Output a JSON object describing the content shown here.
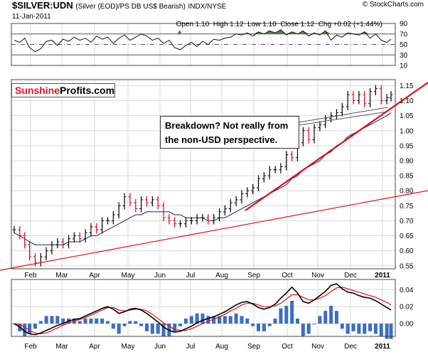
{
  "header": {
    "symbol": "$SILVER:UDN",
    "description": "(Silver (EOD)/PS DB US$ Bearish)",
    "exchange": "INDX/NYSE",
    "date": "11-Jan-2011",
    "quote": "Open 1.10  High 1.12  Low 1.10  Close 1.12  Chg +0.02 (+1.44%)",
    "quote_arrow": "▲",
    "copyright": "© StockCharts.com"
  },
  "logo": {
    "part1": "Sunshine",
    "part2": "Profits.com",
    "color1": "#e0141e",
    "color2": "#000000"
  },
  "annotation": {
    "line1": "Breakdown? Not really from",
    "line2": "the non-USD perspective."
  },
  "colors": {
    "price_up": "#000000",
    "price_down": "#d4001a",
    "ma": "#1a237e",
    "trendline": "#e01010",
    "rsi_fill": "#5a7d4a",
    "macd_hist": "#3a6fc0",
    "macd_signal": "#e01010"
  },
  "chart_data": [
    {
      "type": "line",
      "name": "RSI",
      "yticks": [
        "90",
        "70",
        "50",
        "30",
        "10"
      ],
      "ylim": [
        10,
        90
      ],
      "x": [
        0,
        8,
        15,
        22,
        30,
        38,
        46,
        54,
        62,
        70,
        78,
        86,
        94,
        102,
        110,
        118,
        126,
        134,
        142,
        150,
        158,
        166,
        174,
        182,
        190,
        198,
        206,
        214,
        222,
        230,
        238,
        246,
        254,
        262,
        270,
        278,
        286,
        294,
        302,
        310,
        318,
        326,
        334,
        342,
        350,
        358,
        366,
        374,
        382,
        390,
        398,
        406,
        414,
        422,
        430,
        438,
        446,
        454,
        462,
        470,
        478,
        486,
        494,
        502,
        510,
        518,
        526,
        534,
        540
      ],
      "values": [
        58,
        54,
        62,
        44,
        36,
        42,
        56,
        58,
        48,
        60,
        56,
        64,
        58,
        62,
        54,
        66,
        60,
        64,
        52,
        62,
        68,
        58,
        64,
        70,
        66,
        58,
        62,
        52,
        58,
        44,
        40,
        48,
        54,
        46,
        56,
        50,
        60,
        58,
        62,
        64,
        70,
        68,
        72,
        66,
        74,
        70,
        76,
        72,
        78,
        68,
        74,
        70,
        76,
        66,
        72,
        68,
        76,
        58,
        68,
        64,
        72,
        70,
        68,
        74,
        62,
        70,
        58,
        54,
        60
      ],
      "overbought": 70,
      "oversold": 30
    },
    {
      "type": "line",
      "name": "Price",
      "title": "$SILVER:UDN",
      "yticks": [
        "1.15",
        "1.10",
        "1.05",
        "1.00",
        "0.95",
        "0.90",
        "0.85",
        "0.80",
        "0.75",
        "0.70",
        "0.65",
        "0.60",
        "0.55"
      ],
      "ylim": [
        0.54,
        1.17
      ],
      "months": [
        "Feb",
        "Mar",
        "Apr",
        "May",
        "Jun",
        "Jul",
        "Aug",
        "Sep",
        "Oct",
        "Nov",
        "Dec",
        "2011"
      ],
      "x": [
        0,
        8,
        15,
        22,
        30,
        38,
        46,
        54,
        62,
        70,
        78,
        86,
        94,
        102,
        110,
        118,
        126,
        134,
        142,
        150,
        158,
        166,
        174,
        182,
        190,
        198,
        206,
        214,
        222,
        230,
        238,
        246,
        254,
        262,
        270,
        278,
        286,
        294,
        302,
        310,
        318,
        326,
        334,
        342,
        350,
        358,
        366,
        374,
        382,
        390,
        398,
        406,
        414,
        422,
        430,
        438,
        446,
        454,
        462,
        470,
        478,
        486,
        494,
        502,
        510,
        518,
        526,
        534,
        540
      ],
      "close": [
        0.67,
        0.65,
        0.62,
        0.58,
        0.56,
        0.58,
        0.6,
        0.62,
        0.63,
        0.62,
        0.64,
        0.65,
        0.64,
        0.66,
        0.68,
        0.67,
        0.7,
        0.7,
        0.72,
        0.75,
        0.78,
        0.76,
        0.74,
        0.77,
        0.76,
        0.77,
        0.75,
        0.71,
        0.7,
        0.69,
        0.69,
        0.7,
        0.7,
        0.71,
        0.71,
        0.7,
        0.71,
        0.73,
        0.74,
        0.76,
        0.77,
        0.79,
        0.8,
        0.81,
        0.84,
        0.85,
        0.87,
        0.87,
        0.88,
        0.92,
        0.91,
        0.96,
        1.0,
        0.97,
        1.01,
        1.02,
        1.04,
        1.05,
        1.06,
        1.08,
        1.12,
        1.1,
        1.12,
        1.09,
        1.13,
        1.14,
        1.1,
        1.11,
        1.12
      ],
      "moving_average": [
        0.66,
        0.65,
        0.64,
        0.63,
        0.62,
        0.62,
        0.62,
        0.62,
        0.62,
        0.62,
        0.63,
        0.63,
        0.63,
        0.64,
        0.65,
        0.65,
        0.66,
        0.67,
        0.68,
        0.69,
        0.7,
        0.71,
        0.72,
        0.72,
        0.73,
        0.73,
        0.73,
        0.73,
        0.73,
        0.72,
        0.72,
        0.71,
        0.71,
        0.71,
        0.71,
        0.7,
        0.7,
        0.71,
        0.71,
        0.72,
        0.73,
        0.74,
        0.75,
        0.76,
        0.77,
        0.78,
        0.79,
        0.8,
        0.81,
        0.82,
        0.84,
        0.85,
        0.87,
        0.88,
        0.89,
        0.9,
        0.92,
        0.93,
        0.95,
        0.96,
        0.98,
        0.99,
        1.0,
        1.01,
        1.02,
        1.03,
        1.04,
        1.05,
        1.06
      ]
    },
    {
      "type": "line",
      "name": "MACD",
      "yticks": [
        "0.04",
        "0.02",
        "0.00"
      ],
      "ylim": [
        -0.015,
        0.052
      ],
      "x": [
        0,
        8,
        15,
        22,
        30,
        38,
        46,
        54,
        62,
        70,
        78,
        86,
        94,
        102,
        110,
        118,
        126,
        134,
        142,
        150,
        158,
        166,
        174,
        182,
        190,
        198,
        206,
        214,
        222,
        230,
        238,
        246,
        254,
        262,
        270,
        278,
        286,
        294,
        302,
        310,
        318,
        326,
        334,
        342,
        350,
        358,
        366,
        374,
        382,
        390,
        398,
        406,
        414,
        422,
        430,
        438,
        446,
        454,
        462,
        470,
        478,
        486,
        494,
        502,
        510,
        518,
        526,
        534,
        540
      ],
      "macd": [
        0.0,
        -0.004,
        -0.009,
        -0.012,
        -0.013,
        -0.011,
        -0.008,
        -0.005,
        -0.002,
        0.0,
        0.003,
        0.005,
        0.006,
        0.009,
        0.012,
        0.015,
        0.018,
        0.02,
        0.017,
        0.012,
        0.014,
        0.017,
        0.018,
        0.016,
        0.012,
        0.007,
        0.002,
        -0.004,
        -0.008,
        -0.01,
        -0.009,
        -0.006,
        -0.003,
        0.001,
        0.004,
        0.006,
        0.008,
        0.011,
        0.014,
        0.018,
        0.022,
        0.025,
        0.026,
        0.023,
        0.019,
        0.017,
        0.019,
        0.023,
        0.03,
        0.036,
        0.043,
        0.036,
        0.026,
        0.024,
        0.028,
        0.033,
        0.038,
        0.045,
        0.047,
        0.041,
        0.037,
        0.036,
        0.033,
        0.031,
        0.03,
        0.027,
        0.023,
        0.019,
        0.016
      ],
      "signal": [
        0.0,
        -0.001,
        -0.004,
        -0.008,
        -0.011,
        -0.012,
        -0.011,
        -0.008,
        -0.005,
        -0.002,
        0.001,
        0.003,
        0.005,
        0.007,
        0.01,
        0.013,
        0.016,
        0.019,
        0.019,
        0.016,
        0.015,
        0.016,
        0.017,
        0.017,
        0.015,
        0.011,
        0.006,
        0.001,
        -0.003,
        -0.007,
        -0.008,
        -0.008,
        -0.006,
        -0.003,
        0.0,
        0.003,
        0.005,
        0.008,
        0.011,
        0.015,
        0.018,
        0.022,
        0.024,
        0.024,
        0.022,
        0.02,
        0.02,
        0.021,
        0.024,
        0.029,
        0.034,
        0.034,
        0.031,
        0.028,
        0.028,
        0.03,
        0.033,
        0.038,
        0.042,
        0.043,
        0.041,
        0.039,
        0.037,
        0.035,
        0.033,
        0.031,
        0.028,
        0.025,
        0.022
      ]
    }
  ]
}
